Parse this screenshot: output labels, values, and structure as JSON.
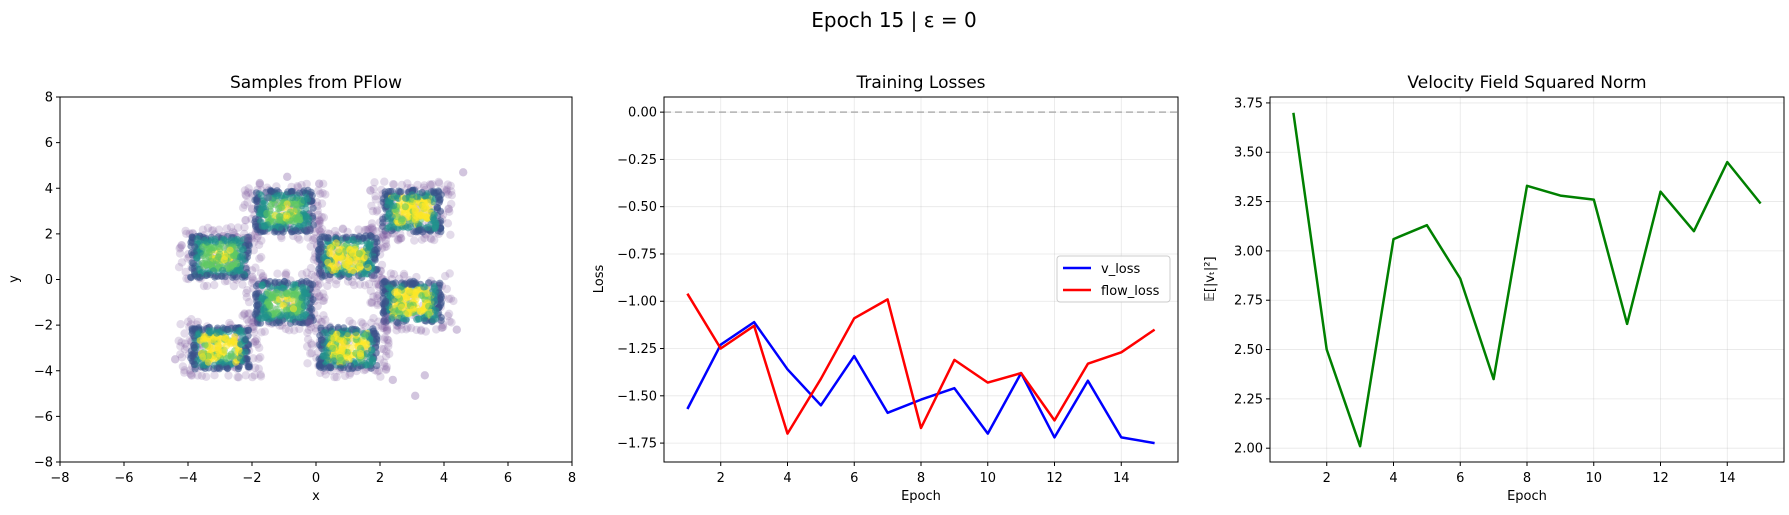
{
  "figure": {
    "suptitle": "Epoch 15 | ε = 0"
  },
  "chart_data": [
    {
      "type": "scatter",
      "title": "Samples from PFlow",
      "xlabel": "x",
      "ylabel": "y",
      "xlim": [
        -8,
        8
      ],
      "ylim": [
        -8,
        8
      ],
      "xticks": [
        -8,
        -6,
        -4,
        -2,
        0,
        2,
        4,
        6,
        8
      ],
      "yticks": [
        -8,
        -6,
        -4,
        -2,
        0,
        2,
        4,
        6,
        8
      ],
      "grid": false,
      "point_color": "#7e5aa0",
      "density_colormap": "viridis",
      "clusters": [
        {
          "center": [
            -3,
            1
          ],
          "size": 2.0
        },
        {
          "center": [
            -1,
            3
          ],
          "size": 2.0
        },
        {
          "center": [
            3,
            3
          ],
          "size": 2.0
        },
        {
          "center": [
            1,
            1
          ],
          "size": 2.0
        },
        {
          "center": [
            -1,
            -1
          ],
          "size": 2.0
        },
        {
          "center": [
            3,
            -1
          ],
          "size": 2.0
        },
        {
          "center": [
            -3,
            -3
          ],
          "size": 2.0
        },
        {
          "center": [
            1,
            -3
          ],
          "size": 2.0
        }
      ],
      "outliers": [
        [
          3.1,
          -5.1
        ],
        [
          3.4,
          -4.2
        ],
        [
          4.6,
          4.7
        ],
        [
          -4.4,
          -3.5
        ],
        [
          -1.5,
          3.6
        ],
        [
          0.1,
          4.2
        ],
        [
          1.7,
          3.9
        ],
        [
          -2.2,
          2.6
        ],
        [
          4.4,
          -2.2
        ],
        [
          -0.9,
          4.5
        ],
        [
          2.4,
          -4.4
        ],
        [
          -4.2,
          1.5
        ]
      ]
    },
    {
      "type": "line",
      "title": "Training Losses",
      "xlabel": "Epoch",
      "ylabel": "Loss",
      "xlim": [
        0.3,
        15.7
      ],
      "ylim": [
        -1.85,
        0.08
      ],
      "xticks": [
        2,
        4,
        6,
        8,
        10,
        12,
        14
      ],
      "yticks": [
        0.0,
        -0.25,
        -0.5,
        -0.75,
        -1.0,
        -1.25,
        -1.5,
        -1.75
      ],
      "ytick_labels": [
        "0.00",
        "−0.25",
        "−0.50",
        "−0.75",
        "−1.00",
        "−1.25",
        "−1.50",
        "−1.75"
      ],
      "grid": true,
      "legend_position": "center-right",
      "reference_line": {
        "y": 0.0,
        "style": "dashed",
        "color": "#b0b0b0"
      },
      "x": [
        1,
        2,
        3,
        4,
        5,
        6,
        7,
        8,
        9,
        10,
        11,
        12,
        13,
        14,
        15
      ],
      "series": [
        {
          "name": "v_loss",
          "color": "#0000ff",
          "values": [
            -1.57,
            -1.23,
            -1.11,
            -1.36,
            -1.55,
            -1.29,
            -1.59,
            -1.52,
            -1.46,
            -1.7,
            -1.38,
            -1.72,
            -1.42,
            -1.72,
            -1.75
          ]
        },
        {
          "name": "flow_loss",
          "color": "#ff0000",
          "values": [
            -0.96,
            -1.25,
            -1.13,
            -1.7,
            -1.41,
            -1.09,
            -0.99,
            -1.67,
            -1.31,
            -1.43,
            -1.38,
            -1.63,
            -1.33,
            -1.27,
            -1.15
          ]
        }
      ]
    },
    {
      "type": "line",
      "title": "Velocity Field Squared Norm",
      "xlabel": "Epoch",
      "ylabel": "𝔼[|vₜ|²]",
      "xlim": [
        0.3,
        15.7
      ],
      "ylim": [
        1.93,
        3.78
      ],
      "xticks": [
        2,
        4,
        6,
        8,
        10,
        12,
        14
      ],
      "yticks": [
        2.0,
        2.25,
        2.5,
        2.75,
        3.0,
        3.25,
        3.5,
        3.75
      ],
      "ytick_labels": [
        "2.00",
        "2.25",
        "2.50",
        "2.75",
        "3.00",
        "3.25",
        "3.50",
        "3.75"
      ],
      "grid": true,
      "x": [
        1,
        2,
        3,
        4,
        5,
        6,
        7,
        8,
        9,
        10,
        11,
        12,
        13,
        14,
        15
      ],
      "series": [
        {
          "color": "#008000",
          "values": [
            3.7,
            2.5,
            2.01,
            3.06,
            3.13,
            2.86,
            2.35,
            3.33,
            3.28,
            3.26,
            2.63,
            3.3,
            3.1,
            3.45,
            3.24
          ]
        }
      ]
    }
  ]
}
